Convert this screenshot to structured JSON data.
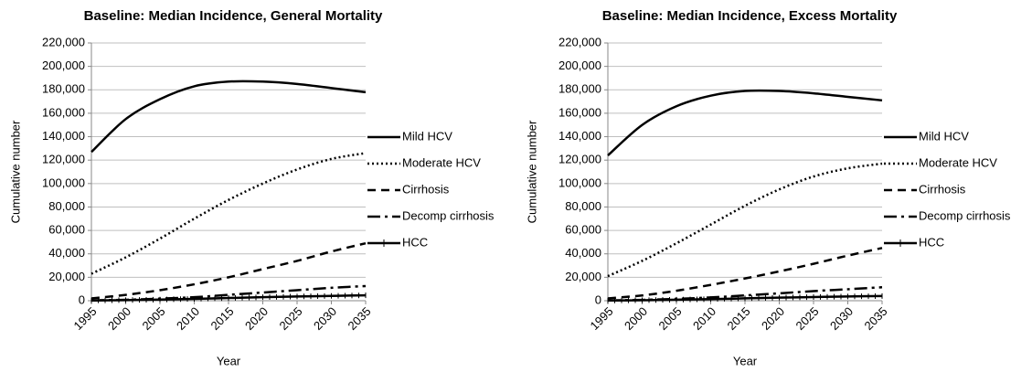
{
  "chart_data": [
    {
      "type": "line",
      "title": "Baseline: Median Incidence, General Mortality",
      "x_label": "Year",
      "y_label": "Cumulative number",
      "x": [
        1995,
        2000,
        2005,
        2010,
        2015,
        2020,
        2025,
        2030,
        2035
      ],
      "xlim": [
        1995,
        2035
      ],
      "xticks": [
        1995,
        2000,
        2005,
        2010,
        2015,
        2020,
        2025,
        2030,
        2035
      ],
      "ylim": [
        0,
        220000
      ],
      "yticks": [
        0,
        {
          "value": 20000,
          "label": "20,000"
        },
        {
          "value": 40000,
          "label": "40,000"
        },
        {
          "value": 60000,
          "label": "60,000"
        },
        {
          "value": 80000,
          "label": "80,000"
        },
        {
          "value": 100000,
          "label": "100,000"
        },
        {
          "value": 120000,
          "label": "120,000"
        },
        {
          "value": 140000,
          "label": "140,000"
        },
        {
          "value": 160000,
          "label": "160,000"
        },
        {
          "value": 180000,
          "label": "180,000"
        },
        {
          "value": 200000,
          "label": "200,000"
        },
        {
          "value": 220000,
          "label": "220,000"
        }
      ],
      "grid": true,
      "legend": "right",
      "series": [
        {
          "name": "Mild HCV",
          "color": "#000000",
          "line_style": "solid",
          "values": [
            127000,
            155000,
            172000,
            183000,
            187000,
            187000,
            185000,
            181500,
            178000
          ]
        },
        {
          "name": "Moderate HCV",
          "color": "#000000",
          "line_style": "dotted",
          "values": [
            23000,
            37000,
            53000,
            70000,
            86000,
            100000,
            112000,
            121000,
            126000
          ]
        },
        {
          "name": "Cirrhosis",
          "color": "#000000",
          "line_style": "dashed",
          "values": [
            2000,
            5000,
            9000,
            14000,
            20000,
            27000,
            34000,
            42000,
            49000
          ]
        },
        {
          "name": "Decomp cirrhosis",
          "color": "#000000",
          "line_style": "dashdot",
          "values": [
            300,
            800,
            1800,
            3000,
            5000,
            7000,
            9000,
            11000,
            12500
          ]
        },
        {
          "name": "HCC",
          "color": "#000000",
          "line_style": "ticked",
          "values": [
            200,
            500,
            1000,
            1600,
            2300,
            3000,
            3600,
            4100,
            4600
          ]
        }
      ]
    },
    {
      "type": "line",
      "title": "Baseline: Median Incidence, Excess Mortality",
      "x_label": "Year",
      "y_label": "Cumulative number",
      "x": [
        1995,
        2000,
        2005,
        2010,
        2015,
        2020,
        2025,
        2030,
        2035
      ],
      "xlim": [
        1995,
        2035
      ],
      "xticks": [
        1995,
        2000,
        2005,
        2010,
        2015,
        2020,
        2025,
        2030,
        2035
      ],
      "ylim": [
        0,
        220000
      ],
      "yticks": [
        0,
        {
          "value": 20000,
          "label": "20,000"
        },
        {
          "value": 40000,
          "label": "40,000"
        },
        {
          "value": 60000,
          "label": "60,000"
        },
        {
          "value": 80000,
          "label": "80,000"
        },
        {
          "value": 100000,
          "label": "100,000"
        },
        {
          "value": 120000,
          "label": "120,000"
        },
        {
          "value": 140000,
          "label": "140,000"
        },
        {
          "value": 160000,
          "label": "160,000"
        },
        {
          "value": 180000,
          "label": "180,000"
        },
        {
          "value": 200000,
          "label": "200,000"
        },
        {
          "value": 220000,
          "label": "220,000"
        }
      ],
      "grid": true,
      "legend": "right",
      "series": [
        {
          "name": "Mild HCV",
          "color": "#000000",
          "line_style": "solid",
          "values": [
            124000,
            150000,
            166000,
            175000,
            179000,
            179000,
            177000,
            174000,
            171000
          ]
        },
        {
          "name": "Moderate HCV",
          "color": "#000000",
          "line_style": "dotted",
          "values": [
            21000,
            34000,
            49000,
            65000,
            81000,
            95000,
            106000,
            113000,
            117000
          ]
        },
        {
          "name": "Cirrhosis",
          "color": "#000000",
          "line_style": "dashed",
          "values": [
            2000,
            4500,
            8500,
            13500,
            19000,
            25000,
            31500,
            38500,
            45000
          ]
        },
        {
          "name": "Decomp cirrhosis",
          "color": "#000000",
          "line_style": "dashdot",
          "values": [
            300,
            700,
            1600,
            2800,
            4500,
            6300,
            8200,
            9800,
            11500
          ]
        },
        {
          "name": "HCC",
          "color": "#000000",
          "line_style": "ticked",
          "values": [
            200,
            400,
            900,
            1400,
            2000,
            2600,
            3100,
            3600,
            4000
          ]
        }
      ]
    }
  ]
}
